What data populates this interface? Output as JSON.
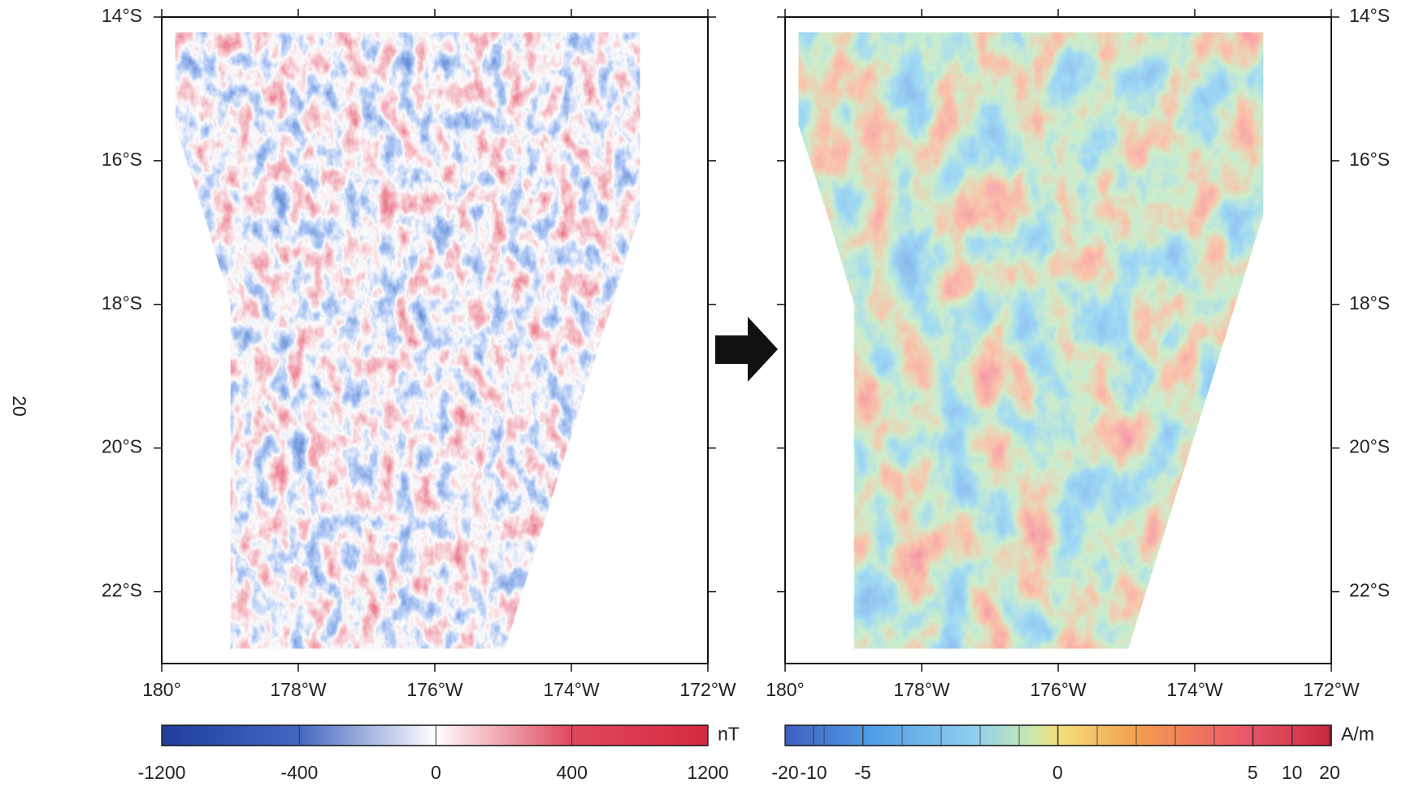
{
  "page_number": "20",
  "panels": [
    {
      "xlim": [
        -180,
        -172
      ],
      "ylim": [
        -23,
        -14
      ],
      "lon_ticks": [
        {
          "value": -180,
          "label": "180°"
        },
        {
          "value": -178,
          "label": "178°W"
        },
        {
          "value": -176,
          "label": "176°W"
        },
        {
          "value": -174,
          "label": "174°W"
        },
        {
          "value": -172,
          "label": "172°W"
        }
      ],
      "lat_ticks": [
        {
          "value": -14,
          "label": "14°S"
        },
        {
          "value": -16,
          "label": "16°S"
        },
        {
          "value": -18,
          "label": "18°S"
        },
        {
          "value": -20,
          "label": "20°S"
        },
        {
          "value": -22,
          "label": "22°S"
        }
      ],
      "colorbar": {
        "unit": "nT",
        "ticks": [
          "-1200",
          "-400",
          "0",
          "400",
          "1200"
        ]
      }
    },
    {
      "xlim": [
        -180,
        -172
      ],
      "ylim": [
        -23,
        -14
      ],
      "lon_ticks": [
        {
          "value": -180,
          "label": "180°"
        },
        {
          "value": -178,
          "label": "178°W"
        },
        {
          "value": -176,
          "label": "176°W"
        },
        {
          "value": -174,
          "label": "174°W"
        },
        {
          "value": -172,
          "label": "172°W"
        }
      ],
      "lat_ticks": [
        {
          "value": -14,
          "label": "14°S"
        },
        {
          "value": -16,
          "label": "16°S"
        },
        {
          "value": -18,
          "label": "18°S"
        },
        {
          "value": -20,
          "label": "20°S"
        },
        {
          "value": -22,
          "label": "22°S"
        }
      ],
      "colorbar": {
        "unit": "A/m",
        "ticks": [
          "-20",
          "-10",
          "-5",
          "0",
          "5",
          "10",
          "20"
        ]
      }
    }
  ]
}
